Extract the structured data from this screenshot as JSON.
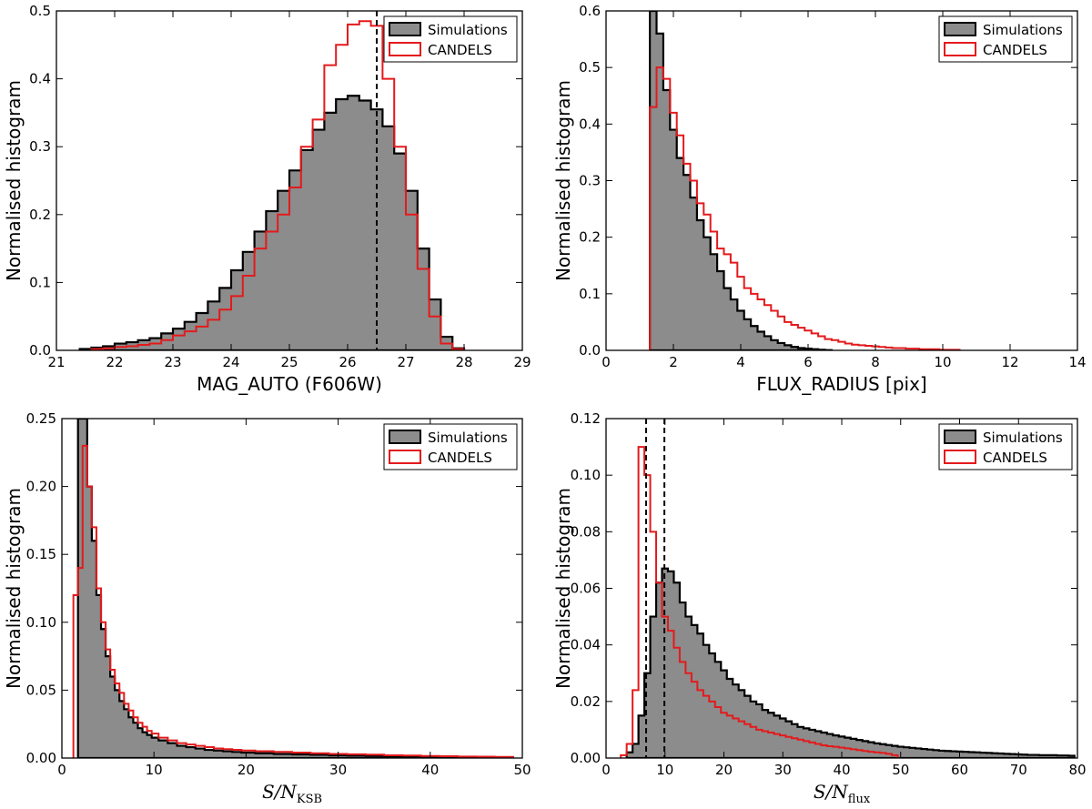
{
  "colors": {
    "sim_fill": "#8c8c8c",
    "sim_edge": "#000000",
    "candels": "#e31a1c",
    "vline": "#000000"
  },
  "chart_data": [
    {
      "type": "histogram",
      "panel": "top-left",
      "xlabel": "MAG_AUTO (F606W)",
      "ylabel": "Normalised histogram",
      "xlim": [
        21,
        29
      ],
      "ylim": [
        0,
        0.5
      ],
      "xticks": [
        21,
        22,
        23,
        24,
        25,
        26,
        27,
        28,
        29
      ],
      "xtick_labels": [
        "21",
        "22",
        "23",
        "24",
        "25",
        "26",
        "27",
        "28",
        "29"
      ],
      "yticks": [
        0,
        0.1,
        0.2,
        0.3,
        0.4,
        0.5
      ],
      "ytick_labels": [
        "0.0",
        "0.1",
        "0.2",
        "0.3",
        "0.4",
        "0.5"
      ],
      "legend": {
        "position": "top-right",
        "entries": [
          "Simulations",
          "CANDELS"
        ]
      },
      "vlines": [
        26.5
      ],
      "series": [
        {
          "name": "Simulations",
          "style": "filled",
          "x": [
            21.5,
            21.7,
            21.9,
            22.1,
            22.3,
            22.5,
            22.7,
            22.9,
            23.1,
            23.3,
            23.5,
            23.7,
            23.9,
            24.1,
            24.3,
            24.5,
            24.7,
            24.9,
            25.1,
            25.3,
            25.5,
            25.7,
            25.9,
            26.1,
            26.3,
            26.5,
            26.7,
            26.9,
            27.1,
            27.3,
            27.5,
            27.7,
            27.9
          ],
          "y": [
            0.002,
            0.004,
            0.006,
            0.01,
            0.012,
            0.015,
            0.018,
            0.025,
            0.032,
            0.042,
            0.055,
            0.072,
            0.092,
            0.118,
            0.145,
            0.175,
            0.205,
            0.235,
            0.265,
            0.295,
            0.325,
            0.35,
            0.37,
            0.375,
            0.368,
            0.355,
            0.33,
            0.29,
            0.235,
            0.15,
            0.075,
            0.02,
            0.003
          ]
        },
        {
          "name": "CANDELS",
          "style": "step",
          "x": [
            21.7,
            21.9,
            22.1,
            22.3,
            22.5,
            22.7,
            22.9,
            23.1,
            23.3,
            23.5,
            23.7,
            23.9,
            24.1,
            24.3,
            24.5,
            24.7,
            24.9,
            25.1,
            25.3,
            25.5,
            25.7,
            25.9,
            26.1,
            26.3,
            26.5,
            26.7,
            26.9,
            27.1,
            27.3,
            27.5,
            27.7,
            27.9
          ],
          "y": [
            0.002,
            0.003,
            0.005,
            0.006,
            0.008,
            0.01,
            0.015,
            0.022,
            0.028,
            0.035,
            0.045,
            0.06,
            0.08,
            0.11,
            0.15,
            0.175,
            0.2,
            0.24,
            0.3,
            0.34,
            0.42,
            0.45,
            0.48,
            0.485,
            0.478,
            0.4,
            0.3,
            0.2,
            0.12,
            0.05,
            0.01,
            0.002
          ]
        }
      ]
    },
    {
      "type": "histogram",
      "panel": "top-right",
      "xlabel": "FLUX_RADIUS [pix]",
      "ylabel": "Normalised histogram",
      "xlim": [
        0,
        14
      ],
      "ylim": [
        0,
        0.6
      ],
      "xticks": [
        0,
        2,
        4,
        6,
        8,
        10,
        12,
        14
      ],
      "xtick_labels": [
        "0",
        "2",
        "4",
        "6",
        "8",
        "10",
        "12",
        "14"
      ],
      "yticks": [
        0,
        0.1,
        0.2,
        0.3,
        0.4,
        0.5,
        0.6
      ],
      "ytick_labels": [
        "0.0",
        "0.1",
        "0.2",
        "0.3",
        "0.4",
        "0.5",
        "0.6"
      ],
      "legend": {
        "position": "top-right",
        "entries": [
          "Simulations",
          "CANDELS"
        ]
      },
      "vlines": [],
      "series": [
        {
          "name": "Simulations",
          "style": "filled",
          "x": [
            1.4,
            1.6,
            1.8,
            2.0,
            2.2,
            2.4,
            2.6,
            2.8,
            3.0,
            3.2,
            3.4,
            3.6,
            3.8,
            4.0,
            4.2,
            4.4,
            4.6,
            4.8,
            5.0,
            5.2,
            5.4,
            5.6,
            5.8,
            6.0,
            6.2,
            6.4,
            6.6
          ],
          "y": [
            0.62,
            0.56,
            0.46,
            0.39,
            0.34,
            0.31,
            0.27,
            0.23,
            0.2,
            0.17,
            0.14,
            0.11,
            0.09,
            0.07,
            0.055,
            0.043,
            0.033,
            0.025,
            0.018,
            0.013,
            0.009,
            0.006,
            0.004,
            0.003,
            0.002,
            0.001,
            0.0005
          ]
        },
        {
          "name": "CANDELS",
          "style": "step",
          "x": [
            1.4,
            1.6,
            1.8,
            2.0,
            2.2,
            2.4,
            2.6,
            2.8,
            3.0,
            3.2,
            3.4,
            3.6,
            3.8,
            4.0,
            4.2,
            4.4,
            4.6,
            4.8,
            5.0,
            5.2,
            5.4,
            5.6,
            5.8,
            6.0,
            6.2,
            6.4,
            6.6,
            6.8,
            7.0,
            7.2,
            7.4,
            7.6,
            7.8,
            8.0,
            8.2,
            8.4,
            8.6,
            8.8,
            9.0,
            9.2,
            9.4,
            9.6,
            9.8,
            10.0,
            10.2,
            10.4
          ],
          "y": [
            0.43,
            0.5,
            0.48,
            0.42,
            0.38,
            0.33,
            0.3,
            0.26,
            0.24,
            0.21,
            0.18,
            0.17,
            0.155,
            0.13,
            0.11,
            0.1,
            0.09,
            0.08,
            0.07,
            0.06,
            0.05,
            0.045,
            0.04,
            0.035,
            0.03,
            0.025,
            0.02,
            0.018,
            0.015,
            0.012,
            0.01,
            0.009,
            0.008,
            0.007,
            0.006,
            0.005,
            0.004,
            0.004,
            0.003,
            0.003,
            0.002,
            0.002,
            0.002,
            0.001,
            0.001,
            0.001
          ]
        }
      ]
    },
    {
      "type": "histogram",
      "panel": "bottom-left",
      "xlabel": "S/N_KSB",
      "xlabel_main": "S/N",
      "xlabel_sub": "KSB",
      "ylabel": "Normalised histogram",
      "xlim": [
        0,
        50
      ],
      "ylim": [
        0,
        0.25
      ],
      "xticks": [
        0,
        10,
        20,
        30,
        40,
        50
      ],
      "xtick_labels": [
        "0",
        "10",
        "20",
        "30",
        "40",
        "50"
      ],
      "yticks": [
        0,
        0.05,
        0.1,
        0.15,
        0.2,
        0.25
      ],
      "ytick_labels": [
        "0.00",
        "0.05",
        "0.10",
        "0.15",
        "0.20",
        "0.25"
      ],
      "legend": {
        "position": "top-right",
        "entries": [
          "Simulations",
          "CANDELS"
        ]
      },
      "vlines": [],
      "series": [
        {
          "name": "Simulations",
          "style": "filled",
          "x": [
            2,
            2.5,
            3,
            3.5,
            4,
            4.5,
            5,
            5.5,
            6,
            6.5,
            7,
            7.5,
            8,
            8.5,
            9,
            9.5,
            10,
            11,
            12,
            13,
            14,
            15,
            16,
            17,
            18,
            19,
            20,
            22,
            24,
            26,
            28,
            30,
            32,
            34,
            36,
            38,
            40,
            42,
            44,
            46,
            48
          ],
          "y": [
            0.26,
            0.25,
            0.2,
            0.16,
            0.12,
            0.095,
            0.075,
            0.06,
            0.05,
            0.042,
            0.036,
            0.03,
            0.026,
            0.022,
            0.019,
            0.017,
            0.015,
            0.013,
            0.011,
            0.009,
            0.008,
            0.007,
            0.006,
            0.0055,
            0.005,
            0.0045,
            0.004,
            0.0035,
            0.003,
            0.0027,
            0.0024,
            0.002,
            0.0018,
            0.0016,
            0.0014,
            0.0012,
            0.001,
            0.0009,
            0.0008,
            0.0007,
            0.0006
          ]
        },
        {
          "name": "CANDELS",
          "style": "step",
          "x": [
            1.5,
            2,
            2.5,
            3,
            3.5,
            4,
            4.5,
            5,
            5.5,
            6,
            6.5,
            7,
            7.5,
            8,
            8.5,
            9,
            9.5,
            10,
            11,
            12,
            13,
            14,
            15,
            16,
            17,
            18,
            19,
            20,
            22,
            24,
            26,
            28,
            30,
            32,
            34,
            36,
            38,
            40,
            42,
            44,
            46,
            48
          ],
          "y": [
            0.12,
            0.14,
            0.23,
            0.2,
            0.17,
            0.125,
            0.1,
            0.08,
            0.065,
            0.055,
            0.048,
            0.04,
            0.035,
            0.03,
            0.026,
            0.023,
            0.02,
            0.018,
            0.015,
            0.013,
            0.011,
            0.01,
            0.009,
            0.008,
            0.007,
            0.0065,
            0.006,
            0.0055,
            0.005,
            0.0045,
            0.004,
            0.0035,
            0.003,
            0.0028,
            0.0025,
            0.002,
            0.0018,
            0.0015,
            0.0013,
            0.0011,
            0.001,
            0.0008
          ]
        }
      ]
    },
    {
      "type": "histogram",
      "panel": "bottom-right",
      "xlabel": "S/N_flux",
      "xlabel_main": "S/N",
      "xlabel_sub": "flux",
      "ylabel": "Normalised histogram",
      "xlim": [
        0,
        80
      ],
      "ylim": [
        0,
        0.12
      ],
      "xticks": [
        0,
        10,
        20,
        30,
        40,
        50,
        60,
        70,
        80
      ],
      "xtick_labels": [
        "0",
        "10",
        "20",
        "30",
        "40",
        "50",
        "60",
        "70",
        "80"
      ],
      "yticks": [
        0,
        0.02,
        0.04,
        0.06,
        0.08,
        0.1,
        0.12
      ],
      "ytick_labels": [
        "0.00",
        "0.02",
        "0.04",
        "0.06",
        "0.08",
        "0.10",
        "0.12"
      ],
      "legend": {
        "position": "top-right",
        "entries": [
          "Simulations",
          "CANDELS"
        ]
      },
      "vlines": [
        6.8,
        9.9
      ],
      "series": [
        {
          "name": "Simulations",
          "style": "filled",
          "x": [
            4,
            5,
            6,
            7,
            8,
            9,
            10,
            11,
            12,
            13,
            14,
            15,
            16,
            17,
            18,
            19,
            20,
            21,
            22,
            23,
            24,
            25,
            26,
            27,
            28,
            29,
            30,
            31,
            32,
            33,
            34,
            35,
            36,
            37,
            38,
            39,
            40,
            41,
            42,
            43,
            44,
            45,
            46,
            47,
            48,
            49,
            50,
            51,
            52,
            53,
            54,
            55,
            56,
            57,
            58,
            59,
            60,
            61,
            62,
            63,
            64,
            65,
            66,
            67,
            68,
            69,
            70,
            71,
            72,
            73,
            74,
            75,
            76,
            77,
            78,
            79
          ],
          "y": [
            0.002,
            0.005,
            0.015,
            0.03,
            0.05,
            0.062,
            0.067,
            0.066,
            0.062,
            0.055,
            0.05,
            0.047,
            0.044,
            0.04,
            0.037,
            0.034,
            0.031,
            0.028,
            0.026,
            0.024,
            0.022,
            0.02,
            0.019,
            0.017,
            0.016,
            0.015,
            0.014,
            0.013,
            0.012,
            0.011,
            0.0105,
            0.01,
            0.0095,
            0.009,
            0.0085,
            0.008,
            0.0076,
            0.0072,
            0.0068,
            0.0064,
            0.006,
            0.0056,
            0.0052,
            0.0049,
            0.0046,
            0.0043,
            0.004,
            0.0038,
            0.0036,
            0.0034,
            0.0032,
            0.003,
            0.0028,
            0.0026,
            0.0025,
            0.0024,
            0.0023,
            0.0022,
            0.0021,
            0.002,
            0.0019,
            0.0018,
            0.0017,
            0.0016,
            0.0015,
            0.0014,
            0.0013,
            0.0012,
            0.0011,
            0.0011,
            0.001,
            0.001,
            0.001,
            0.0009,
            0.0009,
            0.0008
          ]
        },
        {
          "name": "CANDELS",
          "style": "step",
          "x": [
            3,
            4,
            5,
            6,
            7,
            8,
            9,
            10,
            11,
            12,
            13,
            14,
            15,
            16,
            17,
            18,
            19,
            20,
            21,
            22,
            23,
            24,
            25,
            26,
            27,
            28,
            29,
            30,
            31,
            32,
            33,
            34,
            35,
            36,
            37,
            38,
            39,
            40,
            41,
            42,
            43,
            44,
            45,
            46,
            47,
            48,
            49
          ],
          "y": [
            0.001,
            0.005,
            0.024,
            0.11,
            0.1,
            0.08,
            0.062,
            0.05,
            0.045,
            0.039,
            0.034,
            0.03,
            0.027,
            0.024,
            0.022,
            0.02,
            0.018,
            0.016,
            0.015,
            0.014,
            0.013,
            0.012,
            0.011,
            0.01,
            0.0095,
            0.009,
            0.0085,
            0.008,
            0.0075,
            0.007,
            0.0065,
            0.006,
            0.0055,
            0.005,
            0.0045,
            0.0042,
            0.004,
            0.0037,
            0.0034,
            0.0031,
            0.0028,
            0.0025,
            0.0022,
            0.002,
            0.0018,
            0.0015,
            0.001
          ]
        }
      ]
    }
  ]
}
